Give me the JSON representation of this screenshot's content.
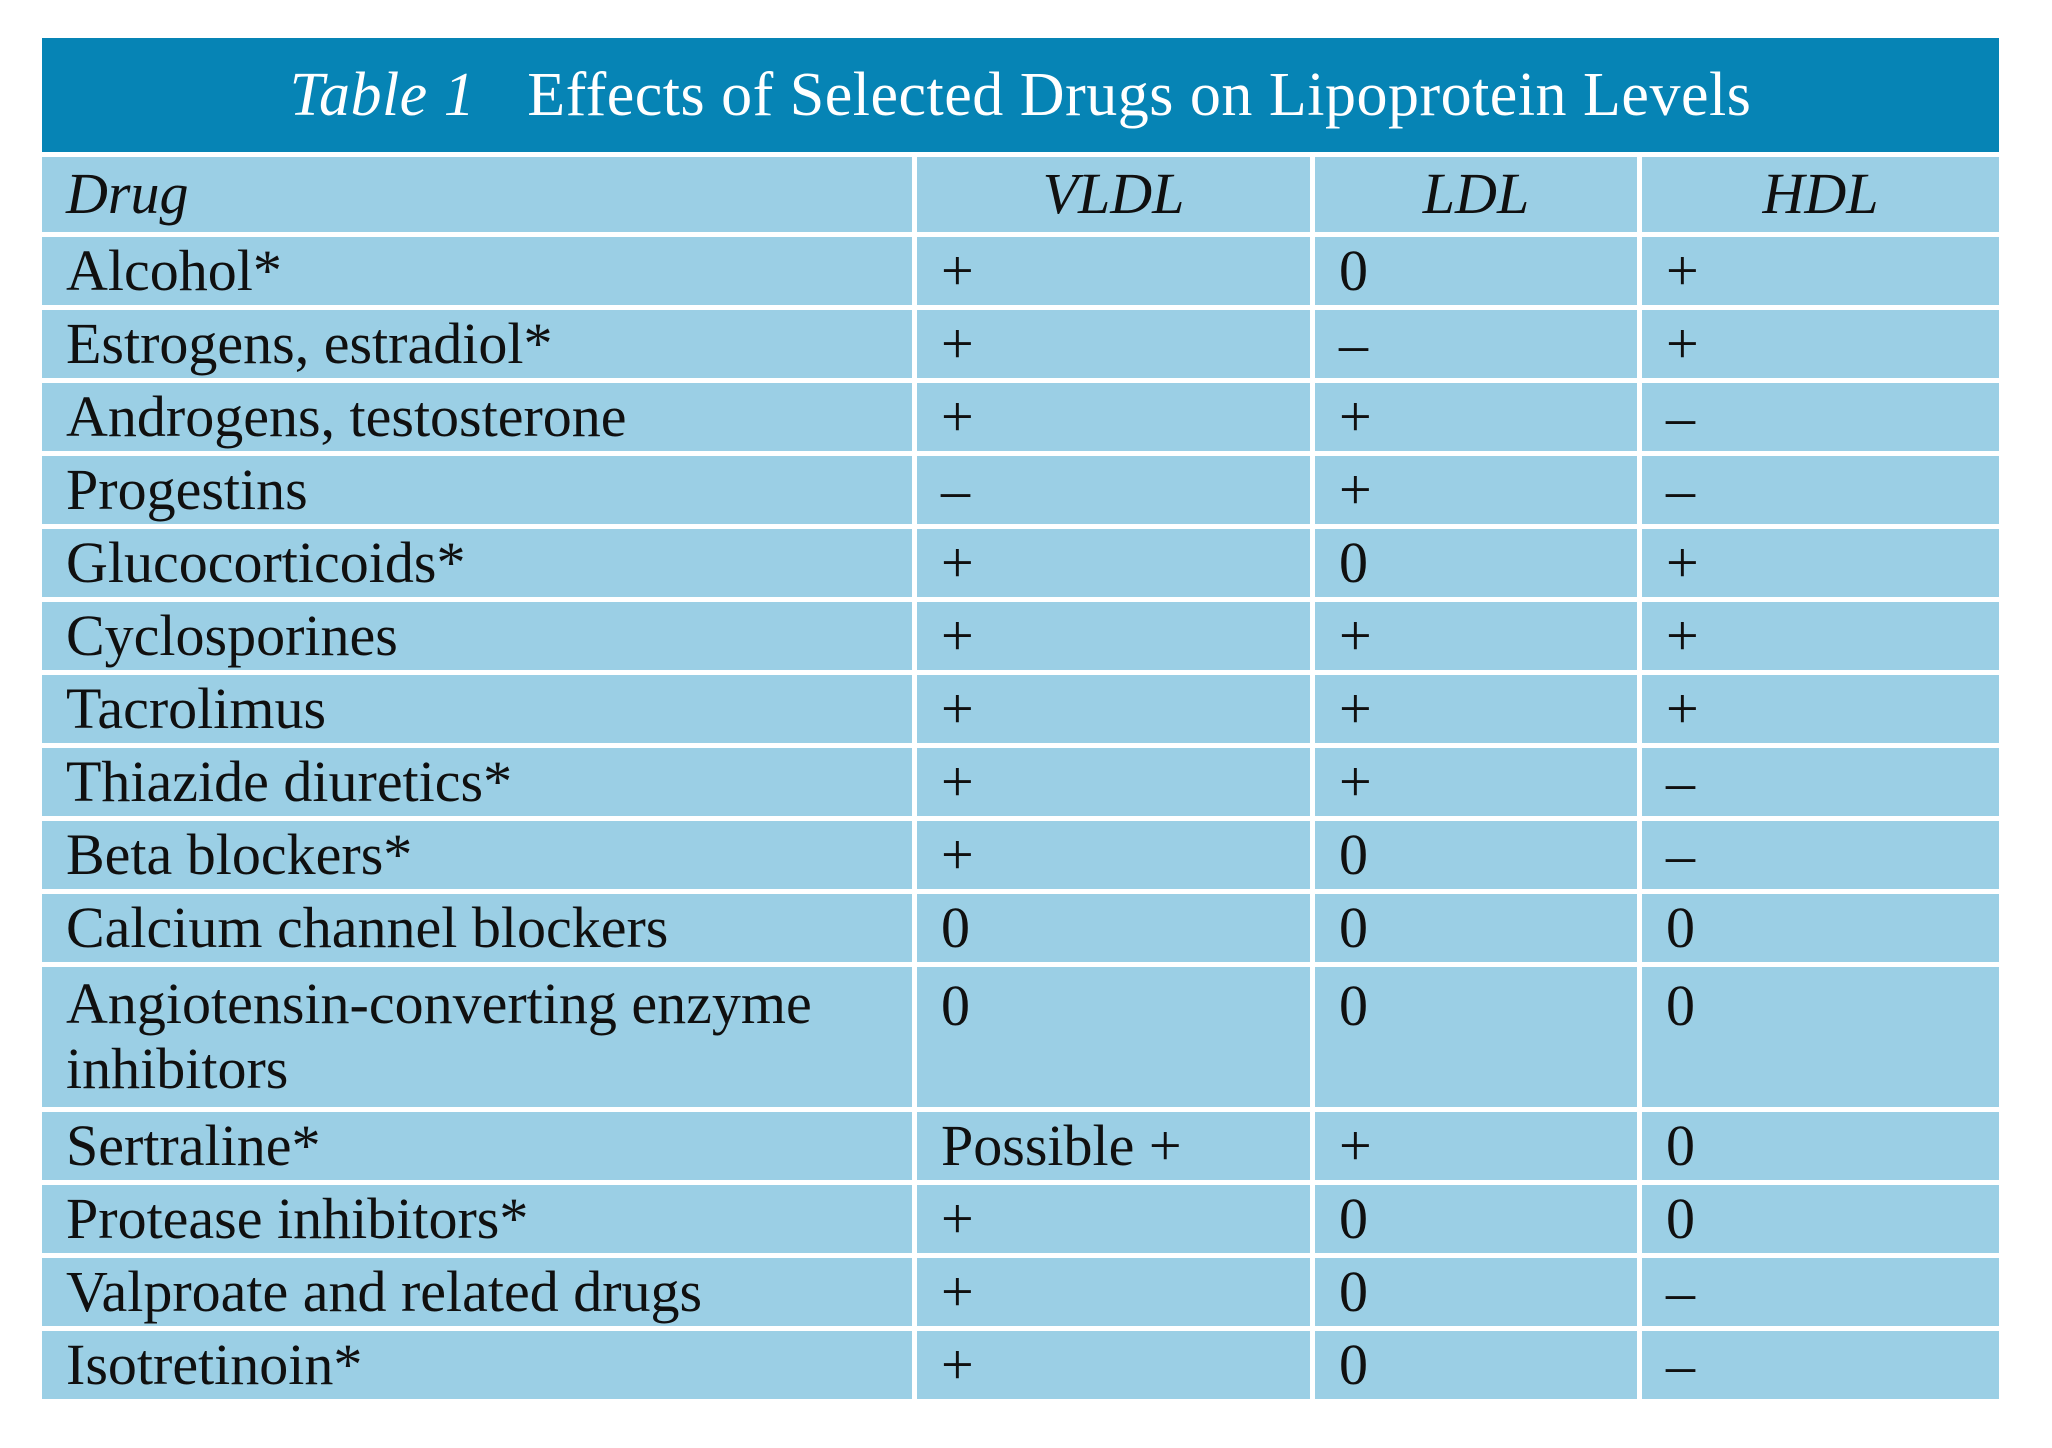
{
  "title": {
    "label": "Table 1",
    "text": "Effects of Selected Drugs on Lipoprotein Levels"
  },
  "columns": {
    "drug": "Drug",
    "vldl": "VLDL",
    "ldl": "LDL",
    "hdl": "HDL"
  },
  "rows": [
    {
      "drug": "Alcohol*",
      "vldl": "+",
      "ldl": "0",
      "hdl": "+"
    },
    {
      "drug": "Estrogens, estradiol*",
      "vldl": "+",
      "ldl": "–",
      "hdl": "+"
    },
    {
      "drug": "Androgens, testosterone",
      "vldl": "+",
      "ldl": "+",
      "hdl": "–"
    },
    {
      "drug": "Progestins",
      "vldl": "–",
      "ldl": "+",
      "hdl": "–"
    },
    {
      "drug": "Glucocorticoids*",
      "vldl": "+",
      "ldl": "0",
      "hdl": "+"
    },
    {
      "drug": "Cyclosporines",
      "vldl": "+",
      "ldl": "+",
      "hdl": "+"
    },
    {
      "drug": "Tacrolimus",
      "vldl": "+",
      "ldl": "+",
      "hdl": "+"
    },
    {
      "drug": "Thiazide diuretics*",
      "vldl": "+",
      "ldl": "+",
      "hdl": "–"
    },
    {
      "drug": "Beta blockers*",
      "vldl": "+",
      "ldl": "0",
      "hdl": "–"
    },
    {
      "drug": "Calcium channel blockers",
      "vldl": "0",
      "ldl": "0",
      "hdl": "0"
    },
    {
      "drug": "Angiotensin-converting enzyme inhibitors",
      "vldl": "0",
      "ldl": "0",
      "hdl": "0",
      "tall": true
    },
    {
      "drug": "Sertraline*",
      "vldl": "Possible +",
      "ldl": "+",
      "hdl": "0"
    },
    {
      "drug": "Protease inhibitors*",
      "vldl": "+",
      "ldl": "0",
      "hdl": "0"
    },
    {
      "drug": "Valproate and related drugs",
      "vldl": "+",
      "ldl": "0",
      "hdl": "–"
    },
    {
      "drug": "Isotretinoin*",
      "vldl": "+",
      "ldl": "0",
      "hdl": "–"
    }
  ],
  "colors": {
    "title_bg": "#0684b5",
    "title_text": "#ffffff",
    "cell_bg": "#9bcfe5",
    "cell_text": "#101010",
    "page_bg": "#ffffff"
  }
}
